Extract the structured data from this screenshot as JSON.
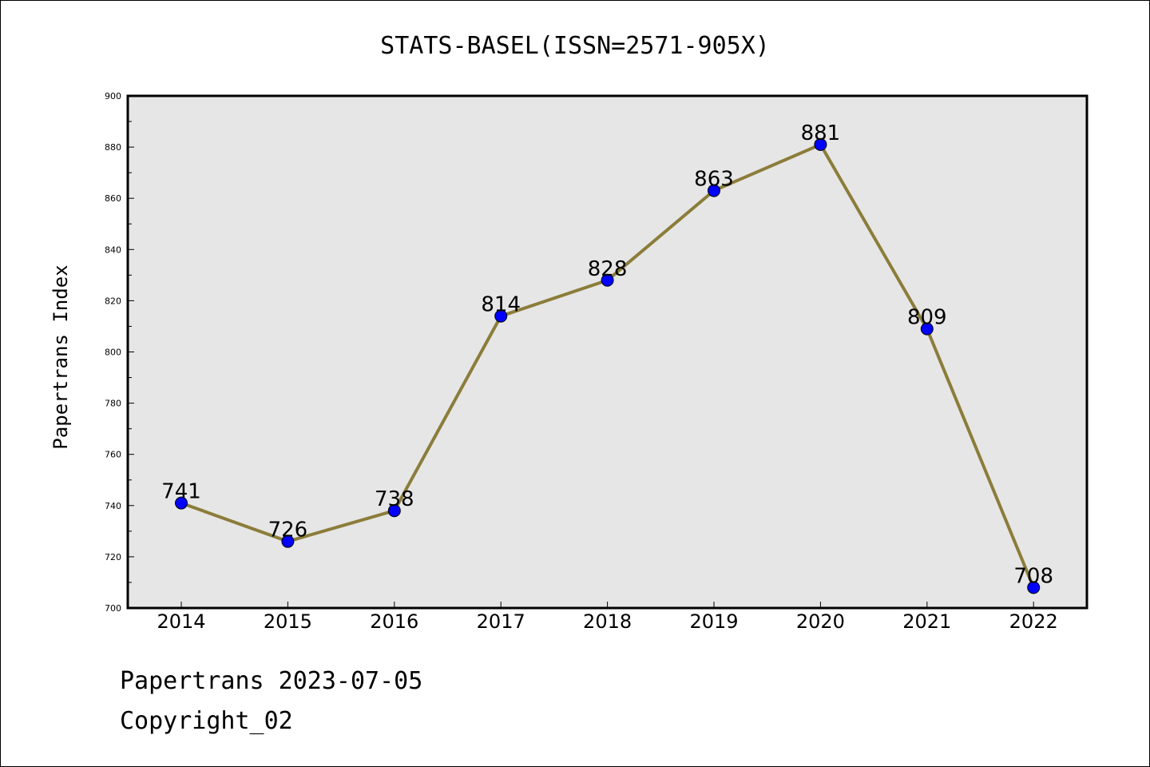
{
  "chart_data": {
    "type": "line",
    "title": "STATS-BASEL(ISSN=2571-905X)",
    "xlabel": "",
    "ylabel": "Papertrans Index",
    "categories": [
      "2014",
      "2015",
      "2016",
      "2017",
      "2018",
      "2019",
      "2020",
      "2021",
      "2022"
    ],
    "series": [
      {
        "values": [
          741,
          726,
          738,
          814,
          828,
          863,
          881,
          809,
          708
        ],
        "line_color": "#8b7d3a",
        "marker_color": "#0000ff"
      }
    ],
    "data_labels": [
      "741",
      "726",
      "738",
      "814",
      "828",
      "863",
      "881",
      "809",
      "708"
    ],
    "ylim": [
      700,
      900
    ],
    "y_ticks": [
      "700",
      "720",
      "740",
      "760",
      "780",
      "800",
      "820",
      "840",
      "860",
      "880",
      "900"
    ],
    "grid": false,
    "plot_background": "#e6e6e6"
  },
  "footer": {
    "line1": "Papertrans 2023-07-05",
    "line2": "Copyright_02"
  }
}
